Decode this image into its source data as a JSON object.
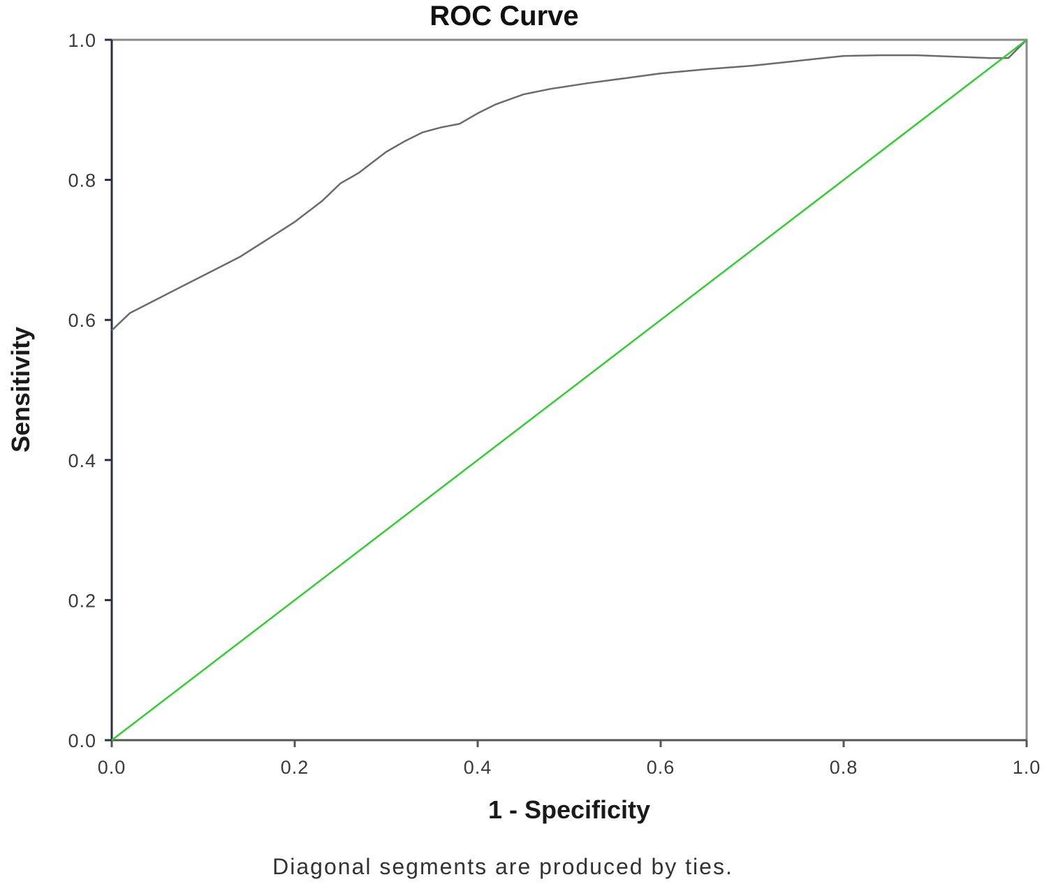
{
  "chart_data": {
    "type": "line",
    "title": "ROC Curve",
    "xlabel": "1 - Specificity",
    "ylabel": "Sensitivity",
    "footnote": "Diagonal segments are produced by ties.",
    "xlim": [
      0,
      1
    ],
    "ylim": [
      0,
      1
    ],
    "x_ticks": [
      "0.0",
      "0.2",
      "0.4",
      "0.6",
      "0.8",
      "1.0"
    ],
    "y_ticks": [
      "0.0",
      "0.2",
      "0.4",
      "0.6",
      "0.8",
      "1.0"
    ],
    "grid": false,
    "legend": "none",
    "series": [
      {
        "color": "#6b6b6b",
        "x": [
          0.0,
          0.02,
          0.05,
          0.08,
          0.11,
          0.14,
          0.17,
          0.2,
          0.23,
          0.25,
          0.27,
          0.28,
          0.3,
          0.32,
          0.34,
          0.36,
          0.38,
          0.4,
          0.42,
          0.45,
          0.48,
          0.52,
          0.56,
          0.6,
          0.65,
          0.7,
          0.75,
          0.8,
          0.84,
          0.88,
          0.92,
          0.96,
          0.98,
          1.0
        ],
        "y": [
          0.585,
          0.61,
          0.63,
          0.65,
          0.67,
          0.69,
          0.715,
          0.74,
          0.77,
          0.795,
          0.81,
          0.82,
          0.84,
          0.855,
          0.868,
          0.875,
          0.88,
          0.895,
          0.908,
          0.922,
          0.93,
          0.938,
          0.945,
          0.952,
          0.958,
          0.963,
          0.97,
          0.977,
          0.978,
          0.978,
          0.976,
          0.974,
          0.974,
          1.0
        ]
      },
      {
        "color": "#33cc33",
        "x": [
          0.0,
          1.0
        ],
        "y": [
          0.0,
          1.0
        ]
      }
    ]
  }
}
